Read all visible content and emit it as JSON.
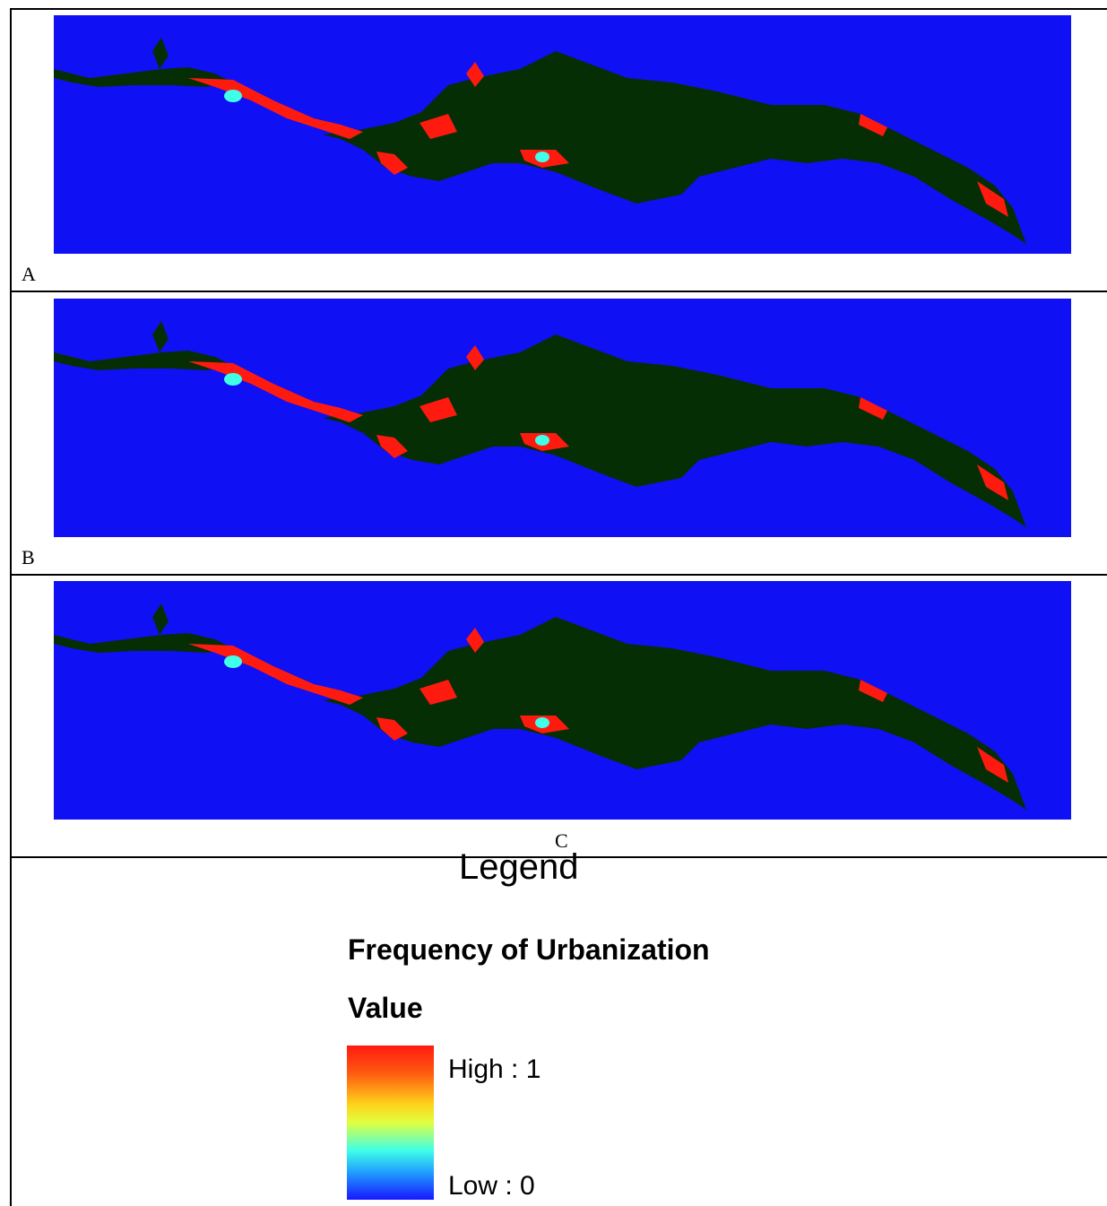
{
  "panels": [
    {
      "label": "A"
    },
    {
      "label": "B"
    },
    {
      "label": "C"
    }
  ],
  "colors": {
    "water": "#1010f4",
    "urban_core": "#052e05",
    "high_frequency": "#ff1a10",
    "low_frequency": "#1818ff"
  },
  "legend": {
    "title": "Legend",
    "layer_name": "Frequency of Urbanization",
    "field_name": "Value",
    "high_label": "High : 1",
    "low_label": "Low : 0",
    "ramp": [
      "#ff1a10",
      "#ffd21a",
      "#e0ff40",
      "#40ffe8",
      "#20a0ff",
      "#1818ff"
    ]
  }
}
